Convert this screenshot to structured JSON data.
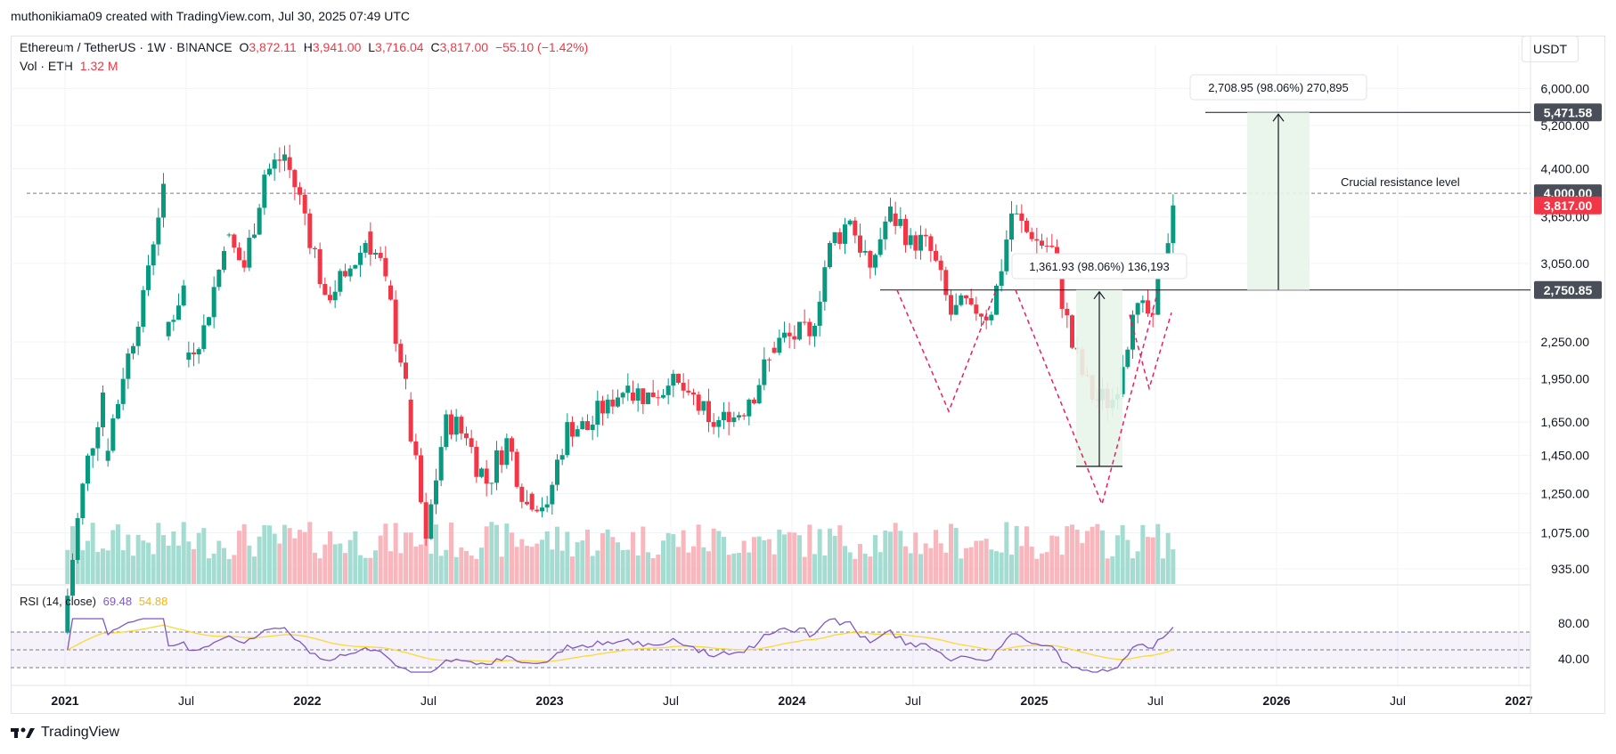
{
  "caption": "muthonikiama09 created with TradingView.com, Jul 30, 2025 07:49 UTC",
  "legend": {
    "symbol": "Ethereum / TetherUS · 1W · BINANCE",
    "o_label": "O",
    "o_value": "3,872.11",
    "h_label": "H",
    "h_value": "3,941.00",
    "l_label": "L",
    "l_value": "3,716.04",
    "c_label": "C",
    "c_value": "3,817.00",
    "change": "−55.10 (−1.42%)",
    "vol_label": "Vol · ETH",
    "vol_value": "1.32 M"
  },
  "unit_button": "USDT",
  "rsi_legend": {
    "label": "RSI (14, close)",
    "rsi_value": "69.48",
    "ma_value": "54.88"
  },
  "footer": {
    "logo_text": "TradingView"
  },
  "colors": {
    "up": "#089981",
    "down": "#f23645",
    "rsi": "#7e57c2",
    "rsi_ma": "#fdd835",
    "vol_up": "#8fd3c7",
    "vol_down": "#f5a5ad"
  },
  "chart_data": {
    "type": "candlestick",
    "scale": "log",
    "price_ticks": [
      "6,000.00",
      "5,200.00",
      "4,400.00",
      "3,650.00",
      "3,050.00",
      "2,250.00",
      "1,950.00",
      "1,650.00",
      "1,450.00",
      "1,250.00",
      "1,075.00",
      "935.00"
    ],
    "x_ticks": [
      "2021",
      "Jul",
      "2022",
      "Jul",
      "2023",
      "Jul",
      "2024",
      "Jul",
      "2025",
      "Jul",
      "2026",
      "Jul",
      "2027"
    ],
    "rsi_ticks": [
      "80.00",
      "40.00"
    ],
    "price_badges": [
      {
        "value": "5,471.58",
        "color": "#4a4e59"
      },
      {
        "value": "4,000.00",
        "color": "#4a4e59"
      },
      {
        "value": "3,817.00",
        "color": "#f23645"
      },
      {
        "value": "2,750.85",
        "color": "#4a4e59"
      }
    ],
    "annotations": [
      {
        "text": "Crucial resistance level"
      },
      {
        "text": "2,708.95 (98.06%) 270,895"
      },
      {
        "text": "1,361.93 (98.06%) 136,193"
      }
    ],
    "series": [
      {
        "name": "ETHUSDT",
        "points": [
          [
            "2021-01",
            730,
            1300
          ],
          [
            "2021-02",
            1300,
            1850
          ],
          [
            "2021-03",
            1420,
            1950
          ],
          [
            "2021-04",
            1950,
            2750
          ],
          [
            "2021-05",
            2750,
            4150
          ],
          [
            "2021-06",
            2300,
            2800
          ],
          [
            "2021-07",
            2100,
            2400
          ],
          [
            "2021-08",
            2400,
            3200
          ],
          [
            "2021-09",
            3400,
            3000
          ],
          [
            "2021-10",
            3000,
            4300
          ],
          [
            "2021-11",
            4300,
            4650
          ],
          [
            "2021-12",
            4600,
            3700
          ],
          [
            "2022-01",
            3700,
            2700
          ],
          [
            "2022-02",
            2700,
            2900
          ],
          [
            "2022-03",
            2900,
            3300
          ],
          [
            "2022-04",
            3450,
            2900
          ],
          [
            "2022-05",
            2800,
            1950
          ],
          [
            "2022-06",
            1800,
            1050
          ],
          [
            "2022-07",
            1050,
            1700
          ],
          [
            "2022-08",
            1700,
            1550
          ],
          [
            "2022-09",
            1550,
            1300
          ],
          [
            "2022-10",
            1300,
            1550
          ],
          [
            "2022-11",
            1550,
            1200
          ],
          [
            "2022-12",
            1250,
            1200
          ],
          [
            "2023-01",
            1200,
            1650
          ],
          [
            "2023-02",
            1650,
            1600
          ],
          [
            "2023-03",
            1600,
            1800
          ],
          [
            "2023-04",
            1800,
            1900
          ],
          [
            "2023-05",
            1850,
            1850
          ],
          [
            "2023-06",
            1850,
            1900
          ],
          [
            "2023-07",
            1900,
            1850
          ],
          [
            "2023-08",
            1850,
            1650
          ],
          [
            "2023-09",
            1650,
            1650
          ],
          [
            "2023-10",
            1650,
            1800
          ],
          [
            "2023-11",
            1800,
            2100
          ],
          [
            "2023-12",
            2200,
            2300
          ],
          [
            "2024-01",
            2300,
            2300
          ],
          [
            "2024-02",
            2300,
            3300
          ],
          [
            "2024-03",
            3300,
            3600
          ],
          [
            "2024-04",
            3600,
            3000
          ],
          [
            "2024-05",
            3000,
            3800
          ],
          [
            "2024-06",
            3700,
            3400
          ],
          [
            "2024-07",
            3400,
            3200
          ],
          [
            "2024-08",
            3200,
            2500
          ],
          [
            "2024-09",
            2500,
            2600
          ],
          [
            "2024-10",
            2600,
            2500
          ],
          [
            "2024-11",
            2500,
            3700
          ],
          [
            "2024-12",
            3700,
            3350
          ],
          [
            "2025-01",
            3350,
            3250
          ],
          [
            "2025-02",
            3250,
            2200
          ],
          [
            "2025-03",
            2200,
            1800
          ],
          [
            "2025-04",
            1800,
            1800
          ],
          [
            "2025-05",
            1800,
            2500
          ],
          [
            "2025-06",
            2500,
            2500
          ],
          [
            "2025-07",
            2500,
            3817
          ]
        ]
      }
    ]
  }
}
